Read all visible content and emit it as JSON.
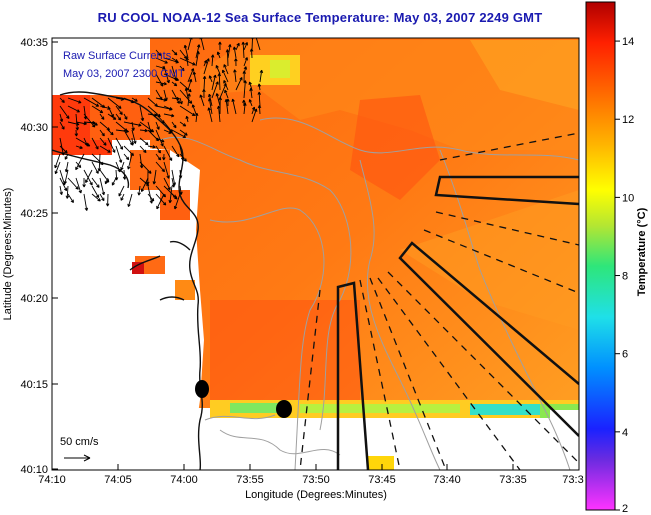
{
  "header": {
    "title": "RU COOL  NOAA-12  Sea Surface Temperature:  May 03, 2007 2249 GMT"
  },
  "map": {
    "overlay_label": "Raw Surface Currents",
    "overlay_time": "May 03, 2007 2300 GMT",
    "scale_label": "50 cm/s",
    "x_axis": {
      "label": "Longitude (Degrees:Minutes)",
      "ticks": [
        "74:10",
        "74:05",
        "74:00",
        "73:55",
        "73:50",
        "73:45",
        "73:40",
        "73:35",
        "73:3"
      ]
    },
    "y_axis": {
      "label": "Latitude (Degrees:Minutes)",
      "ticks": [
        "40:35",
        "40:30",
        "40:25",
        "40:20",
        "40:15",
        "40:10"
      ]
    },
    "colors": {
      "land": "#ffffff",
      "coast": "#111111",
      "contour": "#9a9a9a",
      "sea_warm": "#ff5a10",
      "sea_mid": "#ff8c1a"
    }
  },
  "colorbar": {
    "label": "Temperature (°C)",
    "ticks": [
      "2",
      "4",
      "6",
      "8",
      "10",
      "12",
      "14"
    ],
    "range": [
      2,
      15
    ],
    "stops": [
      "#ff33ff",
      "#4b2bd9",
      "#0033ff",
      "#00a0ff",
      "#22e6e6",
      "#2ee67a",
      "#a8e632",
      "#ffff00",
      "#ffc000",
      "#ff7f00",
      "#ff3000",
      "#b00000"
    ]
  }
}
